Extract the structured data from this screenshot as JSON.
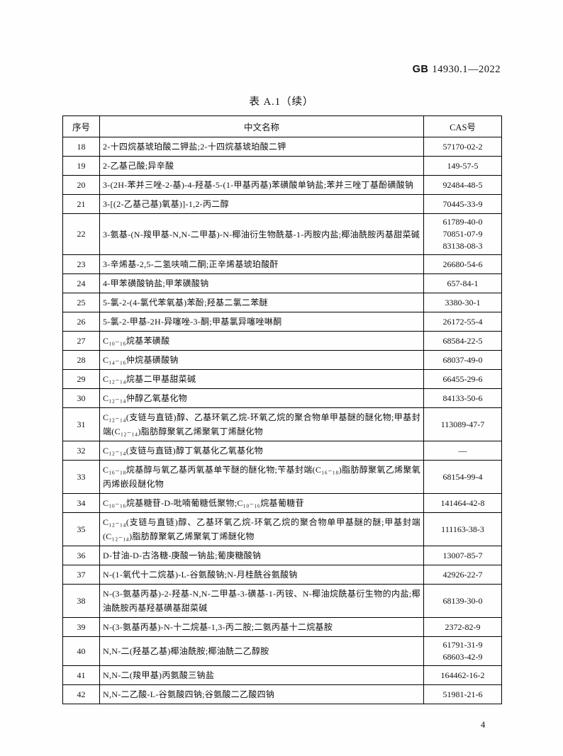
{
  "header": {
    "code": "GB",
    "number": "14930.1—2022"
  },
  "table": {
    "title": "表 A.1（续）",
    "columns": [
      "序号",
      "中文名称",
      "CAS号"
    ],
    "rows": [
      {
        "no": "18",
        "name": "2-十四烷基琥珀酸二钾盐;2-十四烷基琥珀酸二钾",
        "cas": "57170-02-2"
      },
      {
        "no": "19",
        "name": "2-乙基己酸;异辛酸",
        "cas": "149-57-5"
      },
      {
        "no": "20",
        "name": "3-(2H-苯并三唑-2-基)-4-羟基-5-(1-甲基丙基)苯磺酸单钠盐;苯并三唑丁基酚磺酸钠",
        "cas": "92484-48-5"
      },
      {
        "no": "21",
        "name": "3-[(2-乙基己基)氧基)]-1,2-丙二醇",
        "cas": "70445-33-9"
      },
      {
        "no": "22",
        "name": "3-氨基-(N-羧甲基-N,N-二甲基)-N-椰油衍生物酰基-1-丙胺内盐;椰油酰胺丙基甜菜碱",
        "cas": "61789-40-0\n70851-07-9\n83138-08-3"
      },
      {
        "no": "23",
        "name": "3-辛烯基-2,5-二氢呋喃二酮;正辛烯基琥珀酸酐",
        "cas": "26680-54-6"
      },
      {
        "no": "24",
        "name": "4-甲苯磺酸钠盐;甲苯磺酸钠",
        "cas": "657-84-1"
      },
      {
        "no": "25",
        "name": "5-氯-2-(4-氯代苯氧基)苯酚;羟基二氯二苯醚",
        "cas": "3380-30-1"
      },
      {
        "no": "26",
        "name": "5-氯-2-甲基-2H-异噻唑-3-酮;甲基氯异噻唑啉酮",
        "cas": "26172-55-4"
      },
      {
        "no": "27",
        "name": "C₁₀₋₁₆烷基苯磺酸",
        "cas": "68584-22-5"
      },
      {
        "no": "28",
        "name": "C₁₄₋₁₆仲烷基磺酸钠",
        "cas": "68037-49-0"
      },
      {
        "no": "29",
        "name": "C₁₂₋₁₄烷基二甲基甜菜碱",
        "cas": "66455-29-6"
      },
      {
        "no": "30",
        "name": "C₁₂₋₁₄仲醇乙氧基化物",
        "cas": "84133-50-6"
      },
      {
        "no": "31",
        "name": "C₁₂₋₁₄(支链与直链)醇、乙基环氧乙烷-环氧乙烷的聚合物单甲基醚的醚化物;甲基封端(C₁₂₋₁₄)脂肪醇聚氧乙烯聚氧丁烯醚化物",
        "cas": "113089-47-7"
      },
      {
        "no": "32",
        "name": "C₁₂₋₁₄(支链与直链)醇丁氧基化乙氧基化物",
        "cas": "—"
      },
      {
        "no": "33",
        "name": "C₁₆₋₁₈烷基醇与氧乙基丙氧基单苄醚的醚化物;苄基封端(C₁₆₋₁₈)脂肪醇聚氧乙烯聚氧丙烯嵌段醚化物",
        "cas": "68154-99-4"
      },
      {
        "no": "34",
        "name": "C₁₀₋₁₆烷基糖苷-D-吡喃葡糖低聚物;C₁₀₋₁₆烷基葡糖苷",
        "cas": "141464-42-8"
      },
      {
        "no": "35",
        "name": "C₁₂₋₁₄(支链与直链)醇、乙基环氧乙烷-环氧乙烷的聚合物单甲基醚的醚;甲基封端(C₁₂₋₁₄)脂肪醇聚氧乙烯聚氧丁烯醚化物",
        "cas": "111163-38-3"
      },
      {
        "no": "36",
        "name": "D-甘油-D-古洛糖-庚酸一钠盐;葡庚糖酸钠",
        "cas": "13007-85-7"
      },
      {
        "no": "37",
        "name": "N-(1-氧代十二烷基)-L-谷氨酸钠;N-月桂酰谷氨酸钠",
        "cas": "42926-22-7"
      },
      {
        "no": "38",
        "name": "N-(3-氨基丙基)-2-羟基-N,N-二甲基-3-磺基-1-丙铵、N-椰油烷酰基衍生物的内盐;椰油酰胺丙基羟基磺基甜菜碱",
        "cas": "68139-30-0"
      },
      {
        "no": "39",
        "name": "N-(3-氨基丙基)-N-十二烷基-1,3-丙二胺;二氨丙基十二烷基胺",
        "cas": "2372-82-9"
      },
      {
        "no": "40",
        "name": "N,N-二(羟基乙基)椰油酰胺;椰油酰二乙醇胺",
        "cas": "61791-31-9\n68603-42-9"
      },
      {
        "no": "41",
        "name": "N,N-二(羧甲基)丙氨酸三钠盐",
        "cas": "164462-16-2"
      },
      {
        "no": "42",
        "name": "N,N-二乙酸-L-谷氨酸四钠;谷氨酸二乙酸四钠",
        "cas": "51981-21-6"
      }
    ]
  },
  "footer": {
    "page_number": "4"
  }
}
